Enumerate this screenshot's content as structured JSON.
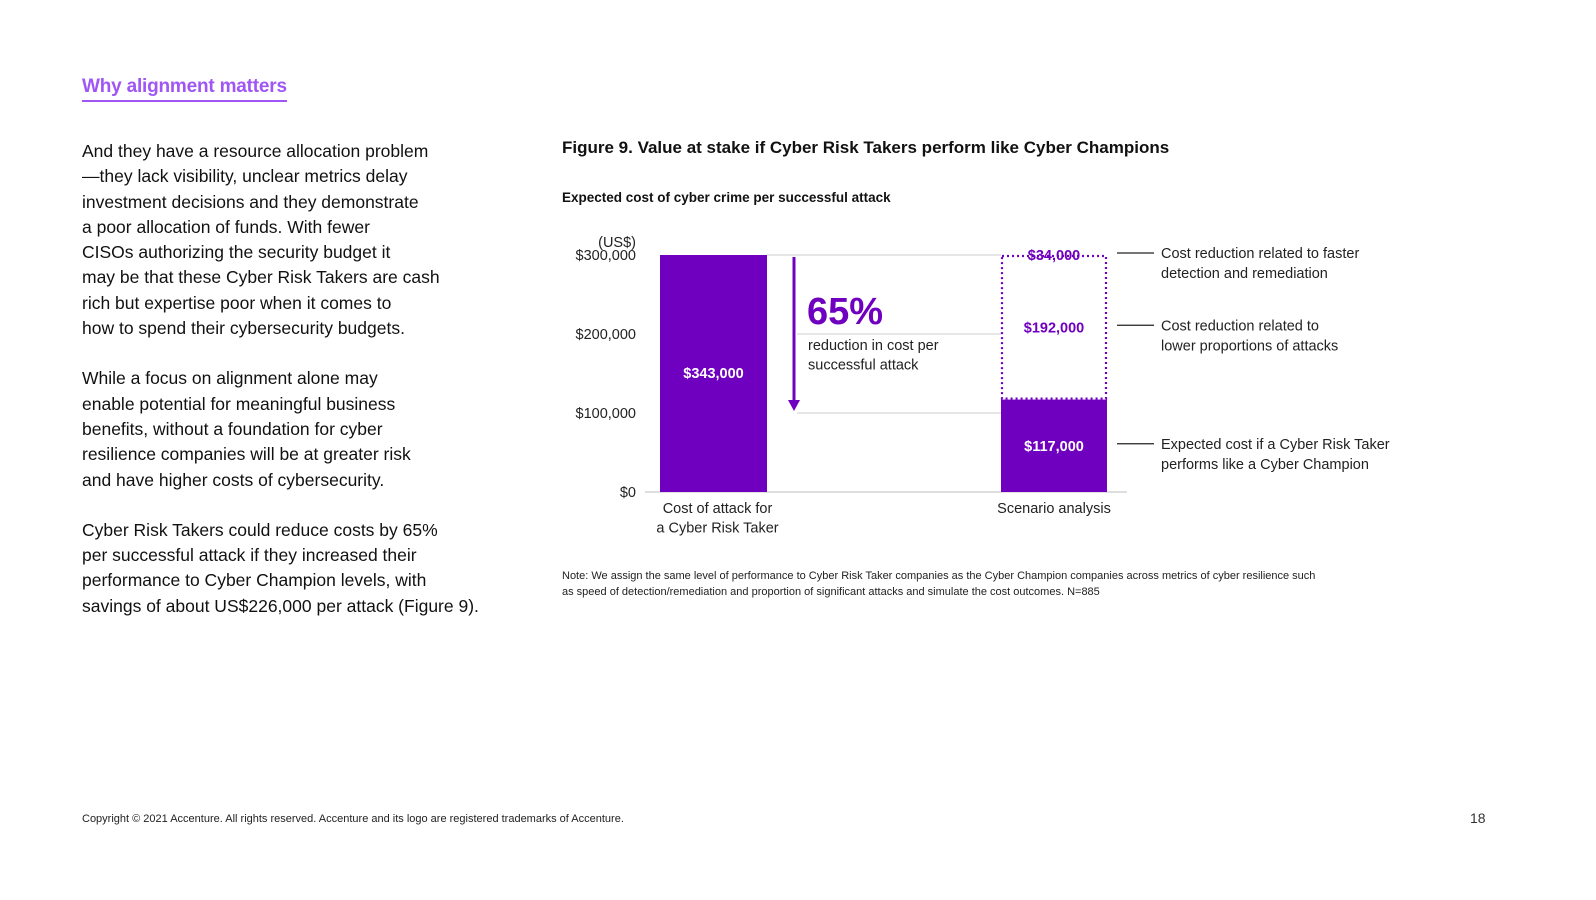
{
  "section_title": "Why alignment matters",
  "body_paragraphs": [
    "And they have a resource allocation problem\n—they lack visibility, unclear metrics delay\ninvestment decisions and they demonstrate\na poor allocation of funds. With fewer\nCISOs authorizing the security budget it\nmay be that these Cyber Risk Takers are cash\nrich but expertise poor when it comes to\nhow to spend their cybersecurity budgets.",
    "While a focus on alignment alone may\nenable potential for meaningful business\nbenefits, without a foundation for cyber\nresilience companies will be at greater risk\nand have higher costs of cybersecurity.",
    "Cyber Risk Takers could reduce costs by 65%\nper successful attack if they increased their\nperformance to Cyber Champion levels, with\nsavings of about US$226,000 per attack (Figure 9)."
  ],
  "figure_title": "Figure 9. Value at stake if Cyber Risk Takers perform like Cyber Champions",
  "note": "Note: We assign the same level of performance to Cyber Risk Taker companies as the Cyber Champion companies across metrics of cyber resilience such as speed of detection/remediation and proportion of significant attacks and simulate the cost outcomes. N=885",
  "copyright": "Copyright © 2021 Accenture. All rights reserved. Accenture and its logo are registered trademarks of Accenture.",
  "page_number": "18",
  "colors": {
    "accent": "#a055f5",
    "bar": "#7000c0",
    "axis": "#cccccc",
    "text": "#111111"
  },
  "chart_data": {
    "type": "bar",
    "subtitle": "Expected cost of cyber crime per successful attack",
    "unit_label": "(US$)",
    "ylim": [
      0,
      300000
    ],
    "y_ticks": [
      {
        "value": 0,
        "label": "$0"
      },
      {
        "value": 100000,
        "label": "$100,000"
      },
      {
        "value": 200000,
        "label": "$200,000"
      },
      {
        "value": 300000,
        "label": "$300,000"
      }
    ],
    "categories": [
      [
        "Cost of attack for",
        "a Cyber Risk Taker"
      ],
      [
        "Scenario analysis"
      ]
    ],
    "bars": [
      {
        "category": 0,
        "value": 343000,
        "label": "$343,000",
        "style": "solid"
      }
    ],
    "stack": [
      {
        "category": 1,
        "value": 117000,
        "label": "$117,000",
        "style": "solid",
        "annotation": [
          "Expected cost if a Cyber Risk Taker",
          "performs like a Cyber Champion"
        ]
      },
      {
        "category": 1,
        "value": 192000,
        "label": "$192,000",
        "style": "dotted",
        "annotation": [
          "Cost reduction related to",
          "lower proportions of attacks"
        ]
      },
      {
        "category": 1,
        "value": 34000,
        "label": "$34,000",
        "style": "dotted",
        "annotation": [
          "Cost reduction related to faster",
          "detection and remediation"
        ]
      }
    ],
    "callout": {
      "value": "65%",
      "text": [
        "reduction in cost per",
        "successful attack"
      ]
    },
    "grid": true,
    "legend": "none"
  }
}
